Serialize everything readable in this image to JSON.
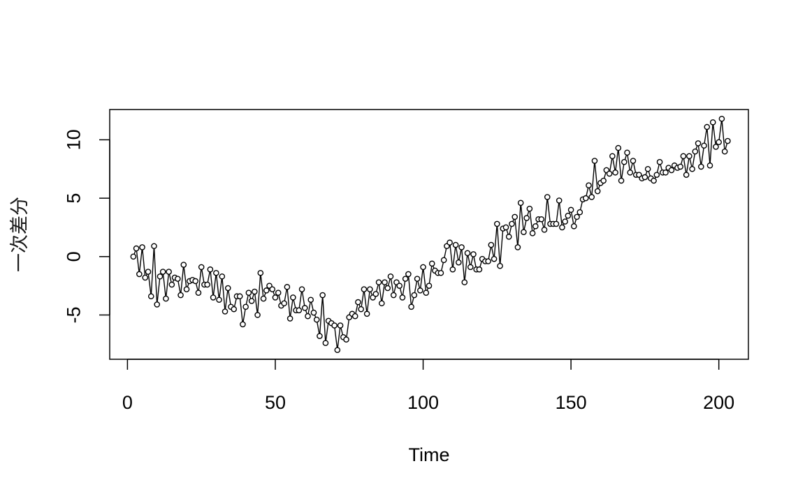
{
  "chart_data": {
    "type": "line",
    "markers": "open-circle",
    "xlabel": "Time",
    "ylabel": "一次差分",
    "xlim": [
      2,
      202
    ],
    "ylim": [
      -8,
      11.8
    ],
    "xticks": [
      0,
      50,
      100,
      150,
      200
    ],
    "yticks": [
      -5,
      0,
      5,
      10
    ],
    "grid": false,
    "color": "#000000",
    "series": [
      {
        "x_start": 2,
        "values": [
          0.0,
          0.7,
          -1.5,
          0.8,
          -1.8,
          -1.3,
          -3.4,
          0.9,
          -4.1,
          -1.7,
          -1.3,
          -3.6,
          -1.3,
          -2.4,
          -1.8,
          -1.9,
          -3.3,
          -0.7,
          -2.8,
          -2.1,
          -2.0,
          -2.1,
          -3.1,
          -0.9,
          -2.4,
          -2.4,
          -1.1,
          -3.5,
          -1.4,
          -3.7,
          -1.7,
          -4.7,
          -2.7,
          -4.3,
          -4.5,
          -3.4,
          -3.4,
          -5.8,
          -4.3,
          -3.1,
          -3.8,
          -3.0,
          -5.0,
          -1.4,
          -3.6,
          -2.9,
          -2.5,
          -2.8,
          -3.5,
          -3.1,
          -4.2,
          -4.0,
          -2.6,
          -5.3,
          -3.5,
          -4.6,
          -4.6,
          -2.8,
          -4.4,
          -5.1,
          -3.7,
          -4.8,
          -5.4,
          -6.8,
          -3.3,
          -7.4,
          -5.5,
          -5.7,
          -5.9,
          -8.0,
          -5.9,
          -6.9,
          -7.1,
          -5.2,
          -4.9,
          -5.1,
          -3.9,
          -4.5,
          -2.8,
          -4.9,
          -2.8,
          -3.5,
          -3.2,
          -2.2,
          -4.0,
          -2.2,
          -2.7,
          -1.7,
          -3.3,
          -2.2,
          -2.5,
          -3.5,
          -1.9,
          -1.5,
          -4.3,
          -3.3,
          -1.9,
          -2.9,
          -0.9,
          -3.1,
          -2.5,
          -0.6,
          -1.2,
          -1.4,
          -1.4,
          -0.3,
          0.9,
          1.2,
          -1.1,
          1.0,
          -0.5,
          0.8,
          -2.2,
          0.3,
          -0.9,
          0.2,
          -1.1,
          -1.1,
          -0.2,
          -0.4,
          -0.4,
          1.0,
          -0.2,
          2.8,
          -0.8,
          2.4,
          2.5,
          1.7,
          2.8,
          3.4,
          0.8,
          4.6,
          2.1,
          3.3,
          4.1,
          2.0,
          2.6,
          3.2,
          3.2,
          2.3,
          5.1,
          2.8,
          2.8,
          2.8,
          4.8,
          2.5,
          3.0,
          3.5,
          4.0,
          2.6,
          3.4,
          3.8,
          4.9,
          5.0,
          6.1,
          5.1,
          8.2,
          5.6,
          6.3,
          6.5,
          7.4,
          7.1,
          8.6,
          7.2,
          9.3,
          6.5,
          8.1,
          8.9,
          7.2,
          8.2,
          7.0,
          7.0,
          6.7,
          6.8,
          7.5,
          6.7,
          6.5,
          7.0,
          8.1,
          7.2,
          7.2,
          7.6,
          7.4,
          7.8,
          7.6,
          7.7,
          8.6,
          7.0,
          8.6,
          7.5,
          9.0,
          9.7,
          7.7,
          9.5,
          11.1,
          7.8,
          11.5,
          9.4,
          9.8,
          11.8,
          9.0,
          9.9
        ]
      }
    ]
  }
}
